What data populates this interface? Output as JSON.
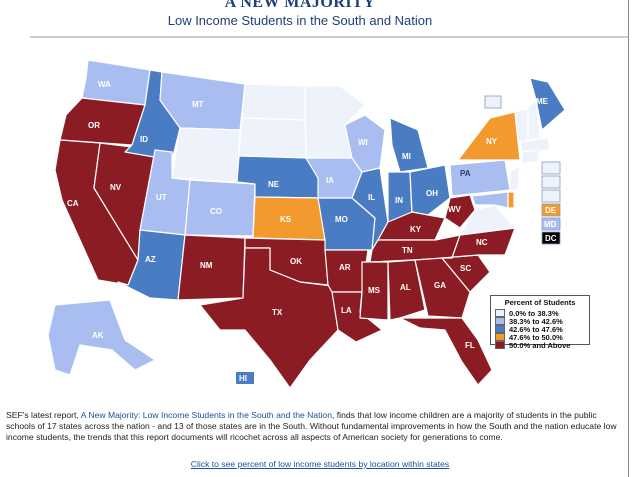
{
  "header": {
    "title": "A NEW MAJORITY",
    "subtitle": "Low Income Students in the South and Nation"
  },
  "legend": {
    "title": "Percent of Students",
    "items": [
      {
        "label": "0.0% to 38.3%",
        "color": "#eef2fb"
      },
      {
        "label": "38.3% to 42.6%",
        "color": "#a9bdf0"
      },
      {
        "label": "42.6% to 47.6%",
        "color": "#4a7cc4"
      },
      {
        "label": "47.6% to 50.0%",
        "color": "#f39a2e"
      },
      {
        "label": "50.0% and Above",
        "color": "#8c1c24"
      }
    ]
  },
  "states": {
    "WA": "WA",
    "OR": "OR",
    "CA": "CA",
    "NV": "NV",
    "ID": "ID",
    "MT": "MT",
    "UT": "UT",
    "AZ": "AZ",
    "CO": "CO",
    "NM": "NM",
    "NE": "NE",
    "KS": "KS",
    "OK": "OK",
    "TX": "TX",
    "IA": "IA",
    "MO": "MO",
    "AR": "AR",
    "LA": "LA",
    "WI": "WI",
    "IL": "IL",
    "MS": "MS",
    "MI": "MI",
    "IN": "IN",
    "KY": "KY",
    "TN": "TN",
    "AL": "AL",
    "OH": "OH",
    "GA": "GA",
    "FL": "FL",
    "WV": "WV",
    "SC": "SC",
    "NC": "NC",
    "PA": "PA",
    "NY": "NY",
    "ME": "ME",
    "AK": "AK",
    "HI": "HI",
    "DE": "DE",
    "MD": "MD",
    "DC": "DC"
  },
  "description": {
    "prefix": "SEF's latest report, ",
    "link": "A New Majority: Low Income Students in the South and the Nation",
    "suffix": ", finds that low income children are a majority of students in the public schools of 17 states across the nation - and 13 of those states are in the South. Without fundamental improvements in how the South and the nation educate low income students, the trends that this report documents will ricochet across all aspects of American society for generations to come."
  },
  "footer_link": "Click to see percent of low income students by location within states"
}
